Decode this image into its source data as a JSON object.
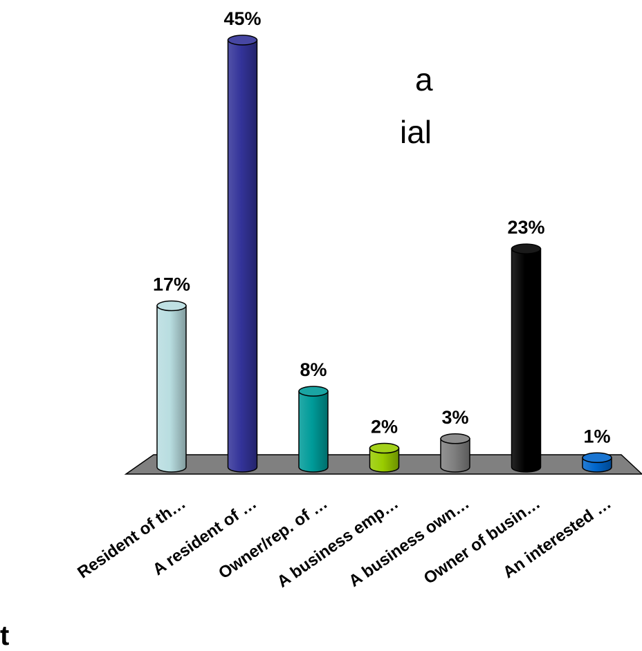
{
  "background_text": {
    "line1": "a",
    "line2": "ial",
    "corner_mark": "t"
  },
  "chart_data": {
    "type": "bar",
    "title": "",
    "xlabel": "",
    "ylabel": "",
    "ylim": [
      0,
      45
    ],
    "grid": false,
    "legend": "none",
    "value_format": "percent",
    "categories": [
      "Resident of th…",
      "A resident of …",
      "Owner/rep. of …",
      "A business emp…",
      "A business own…",
      "Owner of busin…",
      "An interested …"
    ],
    "values": [
      17,
      45,
      8,
      2,
      3,
      23,
      1
    ],
    "data_labels": [
      "17%",
      "45%",
      "8%",
      "2%",
      "3%",
      "23%",
      "1%"
    ],
    "colors": [
      "#b8dde0",
      "#333399",
      "#009b99",
      "#99cc00",
      "#808080",
      "#000000",
      "#0066cc"
    ],
    "floor_color": "#808080"
  }
}
